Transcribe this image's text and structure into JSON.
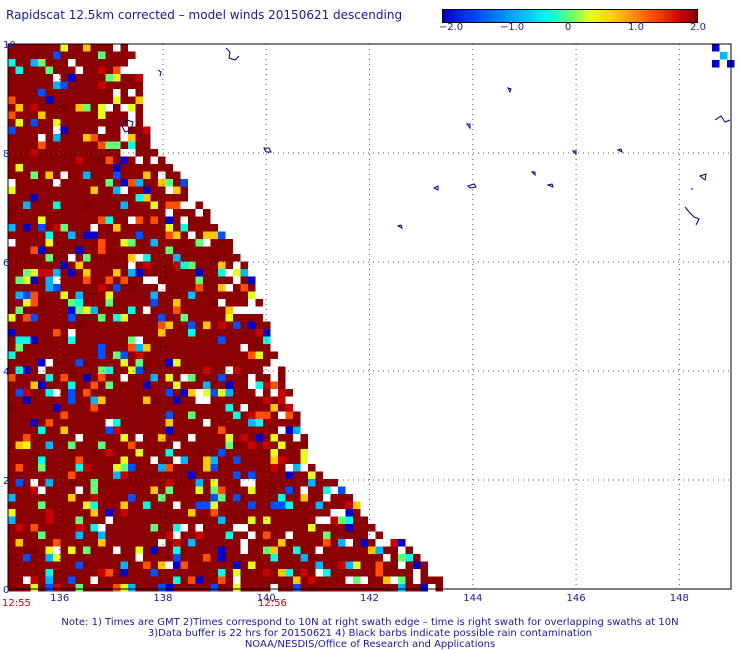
{
  "title": "Rapidscat 12.5km corrected – model winds 20150621 descending",
  "colorbar": {
    "ticks": [
      "−2.0",
      "−1.0",
      "0",
      "1.0",
      "2.0"
    ],
    "tick_values": [
      -2.0,
      -1.0,
      0,
      1.0,
      2.0
    ],
    "range": [
      -2.0,
      2.5
    ],
    "colors": [
      "#0000c8",
      "#0050ff",
      "#00b4ff",
      "#00ffe6",
      "#64ff78",
      "#e6ff1e",
      "#ffc800",
      "#ff5000",
      "#c80000",
      "#800000"
    ]
  },
  "axes": {
    "x_ticks": [
      "136",
      "138",
      "140",
      "142",
      "144",
      "146",
      "148"
    ],
    "x_values": [
      136,
      138,
      140,
      142,
      144,
      146,
      148
    ],
    "y_ticks": [
      "0",
      "2",
      "4",
      "6",
      "8",
      "10"
    ],
    "y_values": [
      0,
      2,
      4,
      6,
      8,
      10
    ],
    "lon_range": [
      135,
      149
    ],
    "lat_range": [
      0,
      10
    ]
  },
  "times": {
    "left": "12:55",
    "mid": "12:56"
  },
  "notes": {
    "line1": "Note: 1) Times are GMT 2)Times correspond to 10N at right swath edge – time is right swath for overlapping swaths at 10N",
    "line2": "3)Data buffer is 22 hrs for 20150621 4) Black barbs indicate possible rain contamination",
    "line3": "NOAA/NESDIS/Office of Research and Applications"
  },
  "colors": {
    "dominant_field": "#8b0000",
    "gridline": "#555555",
    "coastline": "#000080"
  }
}
